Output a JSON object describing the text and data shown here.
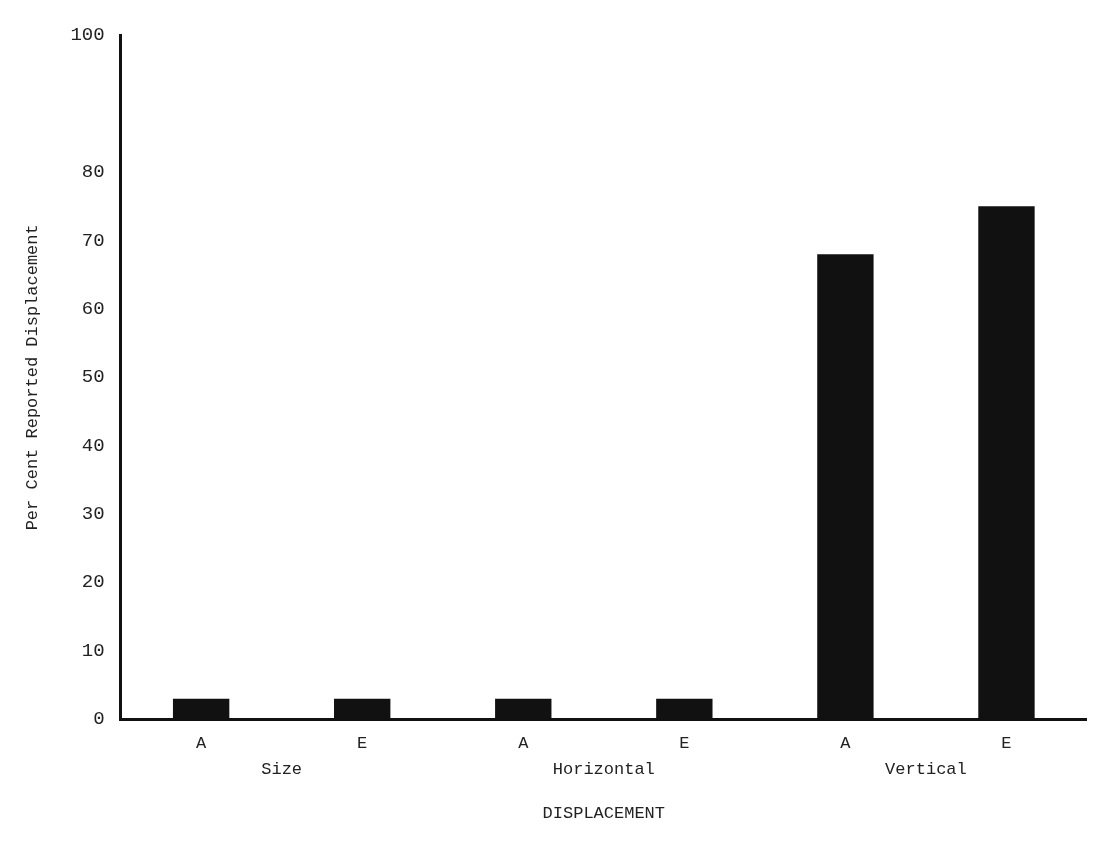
{
  "chart_data": {
    "type": "bar",
    "xlabel": "DISPLACEMENT",
    "ylabel": "Per Cent Reported Displacement",
    "categories": [
      "A",
      "E",
      "A",
      "E",
      "A",
      "E"
    ],
    "values": [
      3,
      3,
      3,
      3,
      68,
      75
    ],
    "color": "#111111",
    "ylim": [
      0,
      100
    ],
    "yticks": [
      0,
      10,
      20,
      30,
      40,
      50,
      60,
      70,
      80,
      100
    ],
    "grid": false,
    "legend": false,
    "annotations": [
      "Size",
      "Horizontal",
      "Vertical"
    ]
  }
}
